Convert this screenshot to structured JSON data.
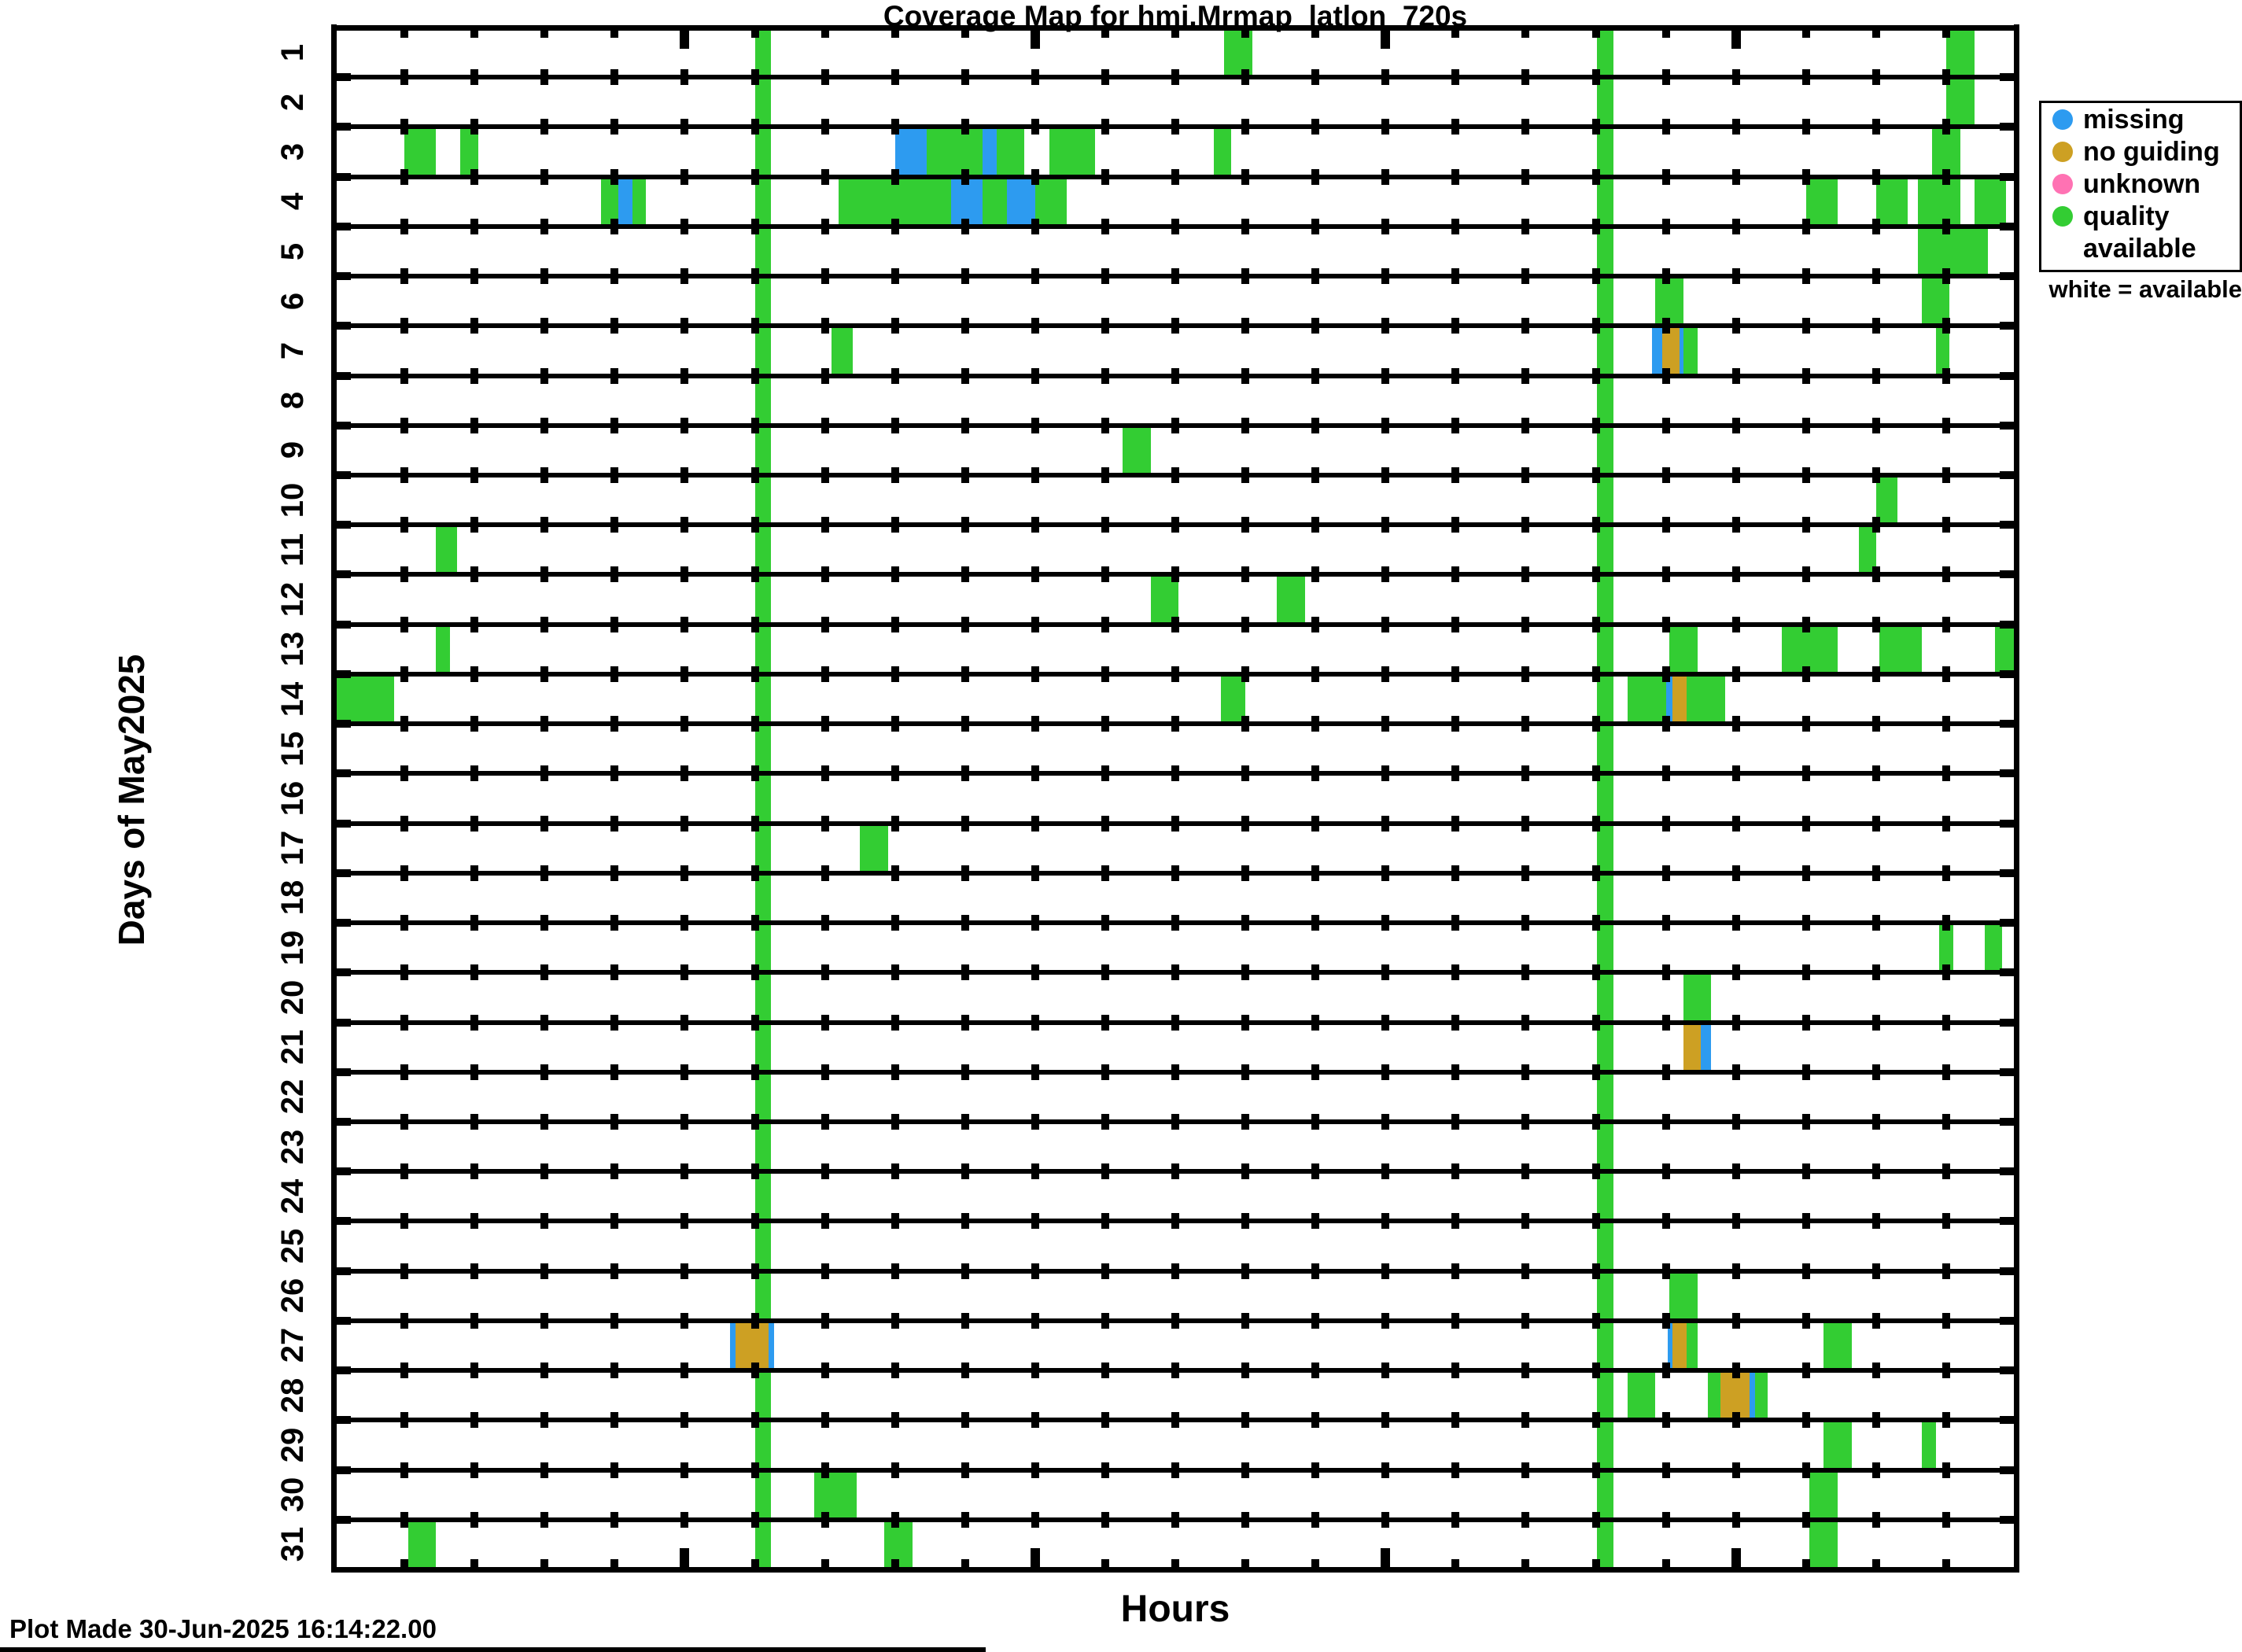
{
  "title": "Coverage Map for hmi.Mrmap_latlon_720s",
  "footer": "Plot Made 30-Jun-2025 16:14:22.00",
  "legend": {
    "items": [
      {
        "key": "missing",
        "label": "missing"
      },
      {
        "key": "noguiding",
        "label": "no guiding"
      },
      {
        "key": "unknown",
        "label": "unknown"
      },
      {
        "key": "quality",
        "label": "quality",
        "label2": "available"
      }
    ],
    "note": "white = available"
  },
  "palette": {
    "missing": "#2D9BF0",
    "noguiding": "#CDA023",
    "unknown": "#FF72B3",
    "quality": "#33CD33",
    "axis": "#000000",
    "background": "#FFFFFF"
  },
  "chart_data": {
    "type": "heatmap",
    "title": "Coverage Map for hmi.Mrmap_latlon_720s",
    "xlabel": "Hours",
    "ylabel": "Days of May2025",
    "x_range": [
      0,
      24
    ],
    "x_minor_tick_step": 1,
    "x_major_tick_step": 5,
    "y_categories_note": "days 1..31 of May 2025, white cell = available",
    "segment_color_keys": {
      "m": "missing",
      "g": "noguiding",
      "u": "unknown",
      "q": "quality"
    },
    "recurring_bands": {
      "color": "q",
      "hours": [
        [
          6.0,
          6.23
        ],
        [
          18.02,
          18.25
        ]
      ],
      "days": "all"
    },
    "days": [
      {
        "day": 1,
        "segments": [
          [
            12.7,
            13.1,
            "q"
          ],
          [
            23.0,
            23.4,
            "q"
          ]
        ]
      },
      {
        "day": 2,
        "segments": [
          [
            23.0,
            23.4,
            "q"
          ]
        ]
      },
      {
        "day": 3,
        "segments": [
          [
            1.0,
            1.45,
            "q"
          ],
          [
            1.8,
            2.05,
            "q"
          ],
          [
            8.0,
            8.45,
            "m"
          ],
          [
            8.45,
            9.25,
            "q"
          ],
          [
            9.25,
            9.45,
            "m"
          ],
          [
            9.45,
            9.85,
            "q"
          ],
          [
            10.2,
            10.85,
            "q"
          ],
          [
            12.55,
            12.8,
            "q"
          ],
          [
            22.8,
            23.2,
            "q"
          ]
        ]
      },
      {
        "day": 4,
        "segments": [
          [
            3.8,
            4.05,
            "q"
          ],
          [
            4.05,
            4.25,
            "m"
          ],
          [
            4.25,
            4.45,
            "q"
          ],
          [
            7.2,
            8.8,
            "q"
          ],
          [
            8.8,
            9.25,
            "m"
          ],
          [
            9.25,
            9.6,
            "q"
          ],
          [
            9.6,
            10.0,
            "m"
          ],
          [
            10.0,
            10.45,
            "q"
          ],
          [
            21.0,
            21.45,
            "q"
          ],
          [
            22.0,
            22.45,
            "q"
          ],
          [
            22.6,
            23.2,
            "q"
          ],
          [
            23.4,
            23.85,
            "q"
          ]
        ]
      },
      {
        "day": 5,
        "segments": [
          [
            22.6,
            23.6,
            "q"
          ]
        ]
      },
      {
        "day": 6,
        "segments": [
          [
            18.85,
            19.25,
            "q"
          ],
          [
            22.65,
            23.05,
            "q"
          ]
        ]
      },
      {
        "day": 7,
        "segments": [
          [
            7.1,
            7.4,
            "q"
          ],
          [
            18.8,
            18.95,
            "m"
          ],
          [
            18.95,
            19.2,
            "g"
          ],
          [
            19.2,
            19.25,
            "m"
          ],
          [
            19.25,
            19.45,
            "q"
          ],
          [
            22.85,
            23.05,
            "q"
          ]
        ]
      },
      {
        "day": 8,
        "segments": []
      },
      {
        "day": 9,
        "segments": [
          [
            11.25,
            11.65,
            "q"
          ]
        ]
      },
      {
        "day": 10,
        "segments": [
          [
            22.0,
            22.3,
            "q"
          ]
        ]
      },
      {
        "day": 11,
        "segments": [
          [
            1.45,
            1.75,
            "q"
          ],
          [
            21.75,
            22.0,
            "q"
          ]
        ]
      },
      {
        "day": 12,
        "segments": [
          [
            11.65,
            12.05,
            "q"
          ],
          [
            13.45,
            13.85,
            "q"
          ]
        ]
      },
      {
        "day": 13,
        "segments": [
          [
            1.45,
            1.65,
            "q"
          ],
          [
            19.05,
            19.45,
            "q"
          ],
          [
            20.65,
            21.45,
            "q"
          ],
          [
            22.05,
            22.65,
            "q"
          ],
          [
            23.7,
            24.0,
            "q"
          ]
        ]
      },
      {
        "day": 14,
        "segments": [
          [
            0.0,
            0.85,
            "q"
          ],
          [
            12.65,
            13.0,
            "q"
          ],
          [
            18.45,
            19.0,
            "q"
          ],
          [
            19.0,
            19.1,
            "m"
          ],
          [
            19.1,
            19.3,
            "g"
          ],
          [
            19.3,
            19.85,
            "q"
          ]
        ]
      },
      {
        "day": 15,
        "segments": []
      },
      {
        "day": 16,
        "segments": []
      },
      {
        "day": 17,
        "segments": [
          [
            7.5,
            7.9,
            "q"
          ]
        ]
      },
      {
        "day": 18,
        "segments": []
      },
      {
        "day": 19,
        "segments": [
          [
            22.9,
            23.1,
            "q"
          ],
          [
            23.55,
            23.8,
            "q"
          ]
        ]
      },
      {
        "day": 20,
        "segments": [
          [
            19.25,
            19.65,
            "q"
          ]
        ]
      },
      {
        "day": 21,
        "segments": [
          [
            19.25,
            19.5,
            "g"
          ],
          [
            19.5,
            19.65,
            "m"
          ]
        ]
      },
      {
        "day": 22,
        "segments": []
      },
      {
        "day": 23,
        "segments": []
      },
      {
        "day": 24,
        "segments": []
      },
      {
        "day": 25,
        "segments": []
      },
      {
        "day": 26,
        "segments": [
          [
            19.05,
            19.45,
            "q"
          ]
        ]
      },
      {
        "day": 27,
        "segments": [
          [
            5.65,
            5.72,
            "m"
          ],
          [
            5.72,
            6.2,
            "g"
          ],
          [
            6.2,
            6.27,
            "m"
          ],
          [
            19.03,
            19.1,
            "m"
          ],
          [
            19.1,
            19.3,
            "g"
          ],
          [
            19.3,
            19.45,
            "q"
          ],
          [
            21.25,
            21.65,
            "q"
          ]
        ]
      },
      {
        "day": 28,
        "segments": [
          [
            18.45,
            18.85,
            "q"
          ],
          [
            19.6,
            19.78,
            "q"
          ],
          [
            19.78,
            20.2,
            "g"
          ],
          [
            20.2,
            20.27,
            "m"
          ],
          [
            20.27,
            20.45,
            "q"
          ]
        ]
      },
      {
        "day": 29,
        "segments": [
          [
            21.25,
            21.65,
            "q"
          ],
          [
            22.65,
            22.85,
            "q"
          ]
        ]
      },
      {
        "day": 30,
        "segments": [
          [
            6.85,
            7.45,
            "q"
          ],
          [
            21.05,
            21.45,
            "q"
          ]
        ]
      },
      {
        "day": 31,
        "segments": [
          [
            1.05,
            1.45,
            "q"
          ],
          [
            7.85,
            8.25,
            "q"
          ],
          [
            21.05,
            21.45,
            "q"
          ]
        ]
      }
    ]
  }
}
